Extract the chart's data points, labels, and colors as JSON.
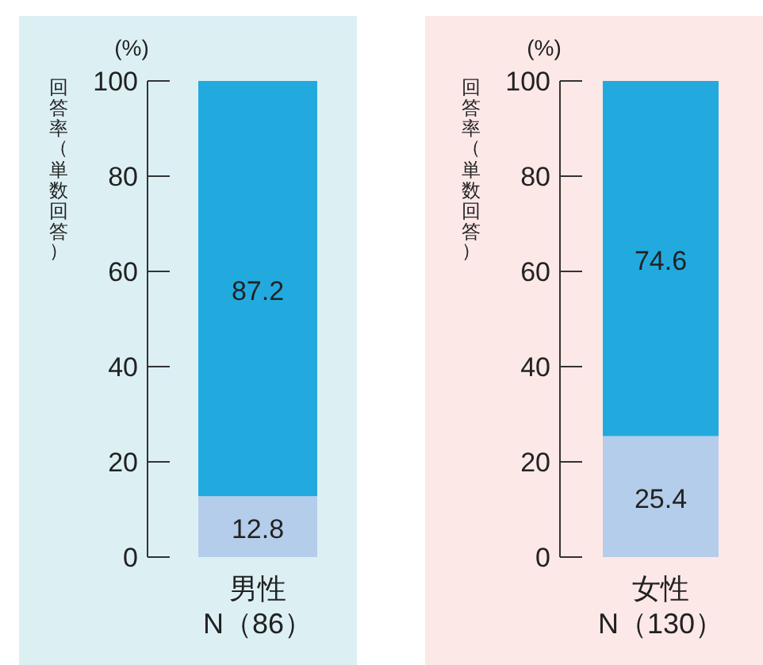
{
  "chart_data": [
    {
      "type": "bar",
      "stacked": true,
      "ylabel": "回答率（単数回答）",
      "annotations": [
        "(%)"
      ],
      "categories": [
        "男性\nN（86）"
      ],
      "ylim": [
        0,
        100
      ],
      "yticks": [
        0,
        20,
        40,
        60,
        80,
        100
      ],
      "data_labels": true,
      "series": [
        {
          "color": "#b4cdea",
          "values": [
            12.8
          ]
        },
        {
          "color": "#22aadf",
          "values": [
            87.2
          ]
        }
      ]
    },
    {
      "type": "bar",
      "stacked": true,
      "ylabel": "回答率（単数回答）",
      "annotations": [
        "(%)"
      ],
      "categories": [
        "女性\nN（130）"
      ],
      "ylim": [
        0,
        100
      ],
      "yticks": [
        0,
        20,
        40,
        60,
        80,
        100
      ],
      "data_labels": true,
      "series": [
        {
          "color": "#b4cdea",
          "values": [
            25.4
          ]
        },
        {
          "color": "#22aadf",
          "values": [
            74.6
          ]
        }
      ]
    }
  ]
}
